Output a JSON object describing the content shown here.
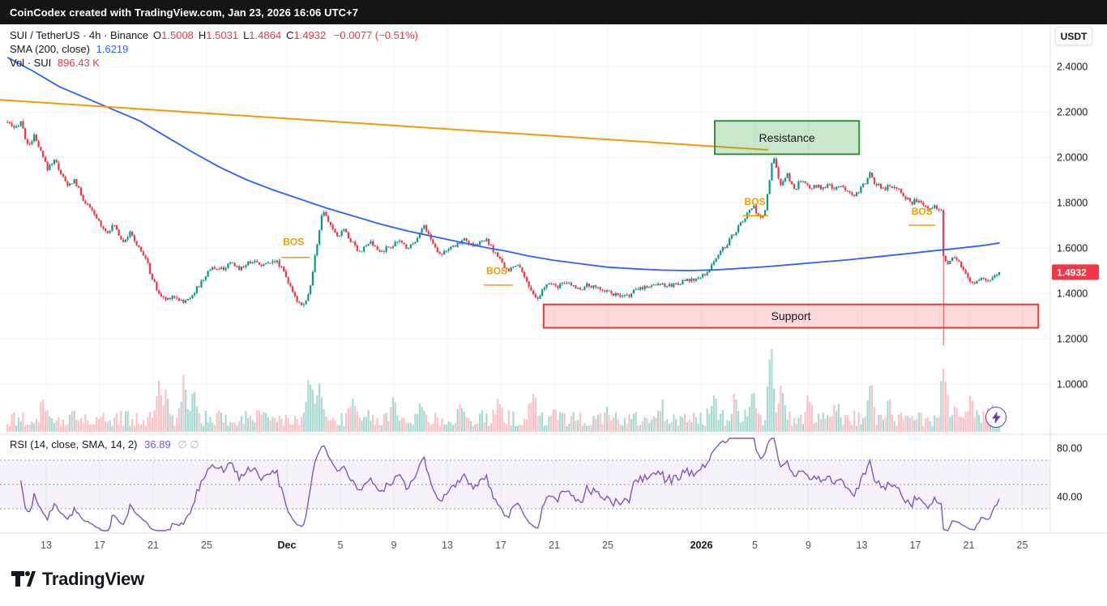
{
  "topbar": {
    "text": "CoinCodex created with TradingView.com, Jan 23, 2026 16:06 UTC+7"
  },
  "header": {
    "symbol_title": "SUI / TetherUS · 4h · Binance",
    "ohlc": {
      "open_label": "O",
      "open": "1.5008",
      "high_label": "H",
      "high": "1.5031",
      "low_label": "L",
      "low": "1.4864",
      "close_label": "C",
      "close": "1.4932",
      "change": "−0.0077 (−0.51%)"
    },
    "sma_label": "SMA (200, close)",
    "sma_value": "1.6219",
    "vol_label": "Vol · SUI",
    "vol_value": "896.43 K",
    "currency_button": "USDT"
  },
  "rsi_legend": {
    "label": "RSI (14, close, SMA, 14, 2)",
    "value": "36.89",
    "hidden_markers": "∅ ∅"
  },
  "footer": {
    "brand": "TradingView"
  },
  "price_axis": {
    "labels": [
      "2.4000",
      "2.2000",
      "2.0000",
      "1.8000",
      "1.6000",
      "1.4000",
      "1.2000",
      "1.0000"
    ],
    "values": [
      2.4,
      2.2,
      2.0,
      1.8,
      1.6,
      1.4,
      1.2,
      1.0
    ],
    "last_price_label": "1.4932",
    "last_price": 1.4932
  },
  "rsi_axis": {
    "labels": [
      "80.00",
      "40.00"
    ],
    "values": [
      80,
      40
    ]
  },
  "time_axis": {
    "labels": [
      {
        "text": "13",
        "day": 2,
        "bold": false
      },
      {
        "text": "17",
        "day": 6,
        "bold": false
      },
      {
        "text": "21",
        "day": 10,
        "bold": false
      },
      {
        "text": "25",
        "day": 14,
        "bold": false
      },
      {
        "text": "Dec",
        "day": 20,
        "bold": true
      },
      {
        "text": "5",
        "day": 24,
        "bold": false
      },
      {
        "text": "9",
        "day": 28,
        "bold": false
      },
      {
        "text": "13",
        "day": 32,
        "bold": false
      },
      {
        "text": "17",
        "day": 36,
        "bold": false
      },
      {
        "text": "21",
        "day": 40,
        "bold": false
      },
      {
        "text": "25",
        "day": 44,
        "bold": false
      },
      {
        "text": "2026",
        "day": 51,
        "bold": true
      },
      {
        "text": "5",
        "day": 55,
        "bold": false
      },
      {
        "text": "9",
        "day": 59,
        "bold": false
      },
      {
        "text": "13",
        "day": 63,
        "bold": false
      },
      {
        "text": "17",
        "day": 67,
        "bold": false
      },
      {
        "text": "21",
        "day": 71,
        "bold": false
      },
      {
        "text": "25",
        "day": 75,
        "bold": false
      }
    ]
  },
  "annotations": {
    "resistance": {
      "label": "Resistance",
      "day_start": 52,
      "day_end": 62.8,
      "price_top": 2.16,
      "price_bottom": 2.013
    },
    "support": {
      "label": "Support",
      "day_start": 39.2,
      "day_end": 76.2,
      "price_top": 1.351,
      "price_bottom": 1.248
    },
    "bos": [
      {
        "label": "BOS",
        "day_center": 20.5,
        "text_price": 1.612,
        "line_day_start": 19.6,
        "line_day_end": 21.7,
        "line_price": 1.558
      },
      {
        "label": "BOS",
        "day_center": 35.7,
        "text_price": 1.484,
        "line_day_start": 34.7,
        "line_day_end": 36.9,
        "line_price": 1.436
      },
      {
        "label": "BOS",
        "day_center": 55.0,
        "text_price": 1.79,
        "line_day_start": 54.1,
        "line_day_end": 56.0,
        "line_price": 1.742
      },
      {
        "label": "BOS",
        "day_center": 67.5,
        "text_price": 1.746,
        "line_day_start": 66.5,
        "line_day_end": 68.5,
        "line_price": 1.7
      }
    ]
  },
  "colors": {
    "up": "#089981",
    "down": "#f23645",
    "vol_up": "rgba(8,153,129,0.35)",
    "vol_down": "rgba(242,54,69,0.30)",
    "sma": "#2962ff",
    "trendline": "#f59b00",
    "bos": "#f59b00",
    "rsi": "#7e57c2",
    "rsi_band": "rgba(126,87,194,0.08)",
    "rsi_dash": "#9598a1",
    "resistance_fill": "rgba(76,175,80,0.30)",
    "resistance_border": "#388e3c",
    "support_fill": "rgba(239,83,80,0.22)",
    "support_border": "#e53935",
    "badge_bg": "#f23645",
    "grid": "#f3f5f9",
    "separator": "#e0e3eb",
    "axis_text": "#131722",
    "time_text": "#50535e"
  },
  "chart_data": {
    "type": "candlestick",
    "symbol": "SUI/USDT",
    "exchange": "Binance",
    "timeframe": "4h",
    "last_bar": {
      "open": 1.5008,
      "high": 1.5031,
      "low": 1.4864,
      "close": 1.4932,
      "change": -0.0077,
      "change_pct": -0.51
    },
    "sma200_last": 1.6219,
    "volume_last": "896.43 K",
    "rsi_last": 36.89,
    "price_axis_range": [
      0.8,
      2.586
    ],
    "rsi_guides": [
      70,
      50,
      30
    ],
    "day_start": -0.9,
    "day_end": 73.35,
    "bars_per_day": 6,
    "last_close": 1.4932,
    "crash_wick": {
      "day": 69.1,
      "low": 1.17
    },
    "price_path": [
      [
        -0.9,
        2.155
      ],
      [
        -0.4,
        2.12
      ],
      [
        0.1,
        2.16
      ],
      [
        0.6,
        2.05
      ],
      [
        1.1,
        2.09
      ],
      [
        1.6,
        2.02
      ],
      [
        2.1,
        1.95
      ],
      [
        2.6,
        1.99
      ],
      [
        3.1,
        1.93
      ],
      [
        3.6,
        1.87
      ],
      [
        4.1,
        1.9
      ],
      [
        4.7,
        1.82
      ],
      [
        5.3,
        1.77
      ],
      [
        5.9,
        1.72
      ],
      [
        6.5,
        1.67
      ],
      [
        7.1,
        1.7
      ],
      [
        7.7,
        1.63
      ],
      [
        8.3,
        1.665
      ],
      [
        8.9,
        1.6
      ],
      [
        9.4,
        1.56
      ],
      [
        9.9,
        1.47
      ],
      [
        10.4,
        1.4
      ],
      [
        10.9,
        1.37
      ],
      [
        11.4,
        1.39
      ],
      [
        11.9,
        1.375
      ],
      [
        12.4,
        1.36
      ],
      [
        12.9,
        1.395
      ],
      [
        13.4,
        1.43
      ],
      [
        13.9,
        1.475
      ],
      [
        14.4,
        1.52
      ],
      [
        14.9,
        1.5
      ],
      [
        15.4,
        1.515
      ],
      [
        15.9,
        1.53
      ],
      [
        16.4,
        1.51
      ],
      [
        16.9,
        1.525
      ],
      [
        17.4,
        1.545
      ],
      [
        17.9,
        1.53
      ],
      [
        18.4,
        1.525
      ],
      [
        18.9,
        1.55
      ],
      [
        19.4,
        1.53
      ],
      [
        19.8,
        1.5
      ],
      [
        20.2,
        1.43
      ],
      [
        20.6,
        1.38
      ],
      [
        21.0,
        1.355
      ],
      [
        21.4,
        1.36
      ],
      [
        21.8,
        1.44
      ],
      [
        22.1,
        1.56
      ],
      [
        22.4,
        1.67
      ],
      [
        22.7,
        1.77
      ],
      [
        23.0,
        1.72
      ],
      [
        23.4,
        1.69
      ],
      [
        23.8,
        1.64
      ],
      [
        24.2,
        1.69
      ],
      [
        24.6,
        1.645
      ],
      [
        25.0,
        1.62
      ],
      [
        25.4,
        1.585
      ],
      [
        25.8,
        1.6
      ],
      [
        26.2,
        1.625
      ],
      [
        26.6,
        1.6
      ],
      [
        27.0,
        1.58
      ],
      [
        27.5,
        1.6
      ],
      [
        28.0,
        1.615
      ],
      [
        28.5,
        1.63
      ],
      [
        29.0,
        1.6
      ],
      [
        29.5,
        1.625
      ],
      [
        29.9,
        1.665
      ],
      [
        30.3,
        1.7
      ],
      [
        30.7,
        1.645
      ],
      [
        31.1,
        1.6
      ],
      [
        31.5,
        1.575
      ],
      [
        31.9,
        1.59
      ],
      [
        32.4,
        1.6
      ],
      [
        32.9,
        1.625
      ],
      [
        33.4,
        1.64
      ],
      [
        33.9,
        1.6
      ],
      [
        34.4,
        1.625
      ],
      [
        34.9,
        1.635
      ],
      [
        35.4,
        1.59
      ],
      [
        35.9,
        1.55
      ],
      [
        36.4,
        1.5
      ],
      [
        36.9,
        1.515
      ],
      [
        37.4,
        1.52
      ],
      [
        37.9,
        1.46
      ],
      [
        38.3,
        1.4
      ],
      [
        38.7,
        1.365
      ],
      [
        39.1,
        1.41
      ],
      [
        39.5,
        1.445
      ],
      [
        40.0,
        1.43
      ],
      [
        40.5,
        1.435
      ],
      [
        41.0,
        1.445
      ],
      [
        41.5,
        1.43
      ],
      [
        42.0,
        1.42
      ],
      [
        42.5,
        1.435
      ],
      [
        43.0,
        1.425
      ],
      [
        43.5,
        1.42
      ],
      [
        44.0,
        1.41
      ],
      [
        44.5,
        1.395
      ],
      [
        45.0,
        1.38
      ],
      [
        45.5,
        1.39
      ],
      [
        46.0,
        1.41
      ],
      [
        46.5,
        1.425
      ],
      [
        47.0,
        1.43
      ],
      [
        47.5,
        1.44
      ],
      [
        48.0,
        1.445
      ],
      [
        48.5,
        1.43
      ],
      [
        49.0,
        1.44
      ],
      [
        49.5,
        1.45
      ],
      [
        50.0,
        1.455
      ],
      [
        50.5,
        1.46
      ],
      [
        51.0,
        1.47
      ],
      [
        51.5,
        1.5
      ],
      [
        52.0,
        1.545
      ],
      [
        52.5,
        1.59
      ],
      [
        53.0,
        1.625
      ],
      [
        53.5,
        1.67
      ],
      [
        54.0,
        1.71
      ],
      [
        54.5,
        1.755
      ],
      [
        54.9,
        1.785
      ],
      [
        55.2,
        1.74
      ],
      [
        55.5,
        1.72
      ],
      [
        55.8,
        1.78
      ],
      [
        56.1,
        1.9
      ],
      [
        56.35,
        2.005
      ],
      [
        56.6,
        1.95
      ],
      [
        56.85,
        1.875
      ],
      [
        57.1,
        1.9
      ],
      [
        57.4,
        1.925
      ],
      [
        57.7,
        1.88
      ],
      [
        58.0,
        1.86
      ],
      [
        58.4,
        1.895
      ],
      [
        58.8,
        1.875
      ],
      [
        59.2,
        1.86
      ],
      [
        59.6,
        1.875
      ],
      [
        60.0,
        1.865
      ],
      [
        60.5,
        1.875
      ],
      [
        61.0,
        1.86
      ],
      [
        61.5,
        1.87
      ],
      [
        62.0,
        1.855
      ],
      [
        62.4,
        1.83
      ],
      [
        62.8,
        1.855
      ],
      [
        63.2,
        1.88
      ],
      [
        63.6,
        1.925
      ],
      [
        63.9,
        1.89
      ],
      [
        64.3,
        1.875
      ],
      [
        64.7,
        1.86
      ],
      [
        65.1,
        1.875
      ],
      [
        65.5,
        1.87
      ],
      [
        65.9,
        1.855
      ],
      [
        66.3,
        1.82
      ],
      [
        66.7,
        1.8
      ],
      [
        67.1,
        1.81
      ],
      [
        67.5,
        1.79
      ],
      [
        67.9,
        1.775
      ],
      [
        68.3,
        1.785
      ],
      [
        68.7,
        1.775
      ],
      [
        68.95,
        1.772
      ],
      [
        69.1,
        1.565
      ],
      [
        69.35,
        1.53
      ],
      [
        69.6,
        1.55
      ],
      [
        69.9,
        1.565
      ],
      [
        70.2,
        1.54
      ],
      [
        70.5,
        1.505
      ],
      [
        70.8,
        1.48
      ],
      [
        71.1,
        1.455
      ],
      [
        71.4,
        1.435
      ],
      [
        71.7,
        1.45
      ],
      [
        72.0,
        1.47
      ],
      [
        72.3,
        1.455
      ],
      [
        72.6,
        1.465
      ],
      [
        72.9,
        1.48
      ],
      [
        73.1,
        1.475
      ],
      [
        73.35,
        1.4932
      ]
    ],
    "sma200_path": [
      [
        -0.9,
        2.44
      ],
      [
        1,
        2.38
      ],
      [
        3,
        2.31
      ],
      [
        5,
        2.26
      ],
      [
        7,
        2.21
      ],
      [
        9,
        2.16
      ],
      [
        11,
        2.09
      ],
      [
        13,
        2.02
      ],
      [
        15,
        1.955
      ],
      [
        17,
        1.9
      ],
      [
        19,
        1.855
      ],
      [
        21,
        1.815
      ],
      [
        23,
        1.775
      ],
      [
        25,
        1.74
      ],
      [
        27,
        1.705
      ],
      [
        29,
        1.675
      ],
      [
        31,
        1.65
      ],
      [
        33,
        1.625
      ],
      [
        35,
        1.6
      ],
      [
        36.5,
        1.585
      ],
      [
        38,
        1.565
      ],
      [
        40,
        1.545
      ],
      [
        42,
        1.53
      ],
      [
        44,
        1.515
      ],
      [
        46,
        1.508
      ],
      [
        48,
        1.502
      ],
      [
        50,
        1.5
      ],
      [
        52,
        1.503
      ],
      [
        54,
        1.51
      ],
      [
        56,
        1.518
      ],
      [
        58,
        1.528
      ],
      [
        60,
        1.538
      ],
      [
        62,
        1.548
      ],
      [
        64,
        1.56
      ],
      [
        66,
        1.572
      ],
      [
        68,
        1.585
      ],
      [
        70,
        1.597
      ],
      [
        72,
        1.61
      ],
      [
        73.3,
        1.6219
      ]
    ],
    "trendline": {
      "start": [
        -1.5,
        2.253
      ],
      "end": [
        56.0,
        2.032
      ]
    },
    "volume_spikes": [
      [
        1.8,
        0.22
      ],
      [
        4.0,
        0.18
      ],
      [
        10.4,
        0.45
      ],
      [
        11.0,
        0.3
      ],
      [
        12.3,
        0.5
      ],
      [
        13.0,
        0.3
      ],
      [
        21.7,
        0.5
      ],
      [
        22.4,
        0.45
      ],
      [
        25.0,
        0.2
      ],
      [
        28.0,
        0.25
      ],
      [
        30.0,
        0.25
      ],
      [
        33.0,
        0.18
      ],
      [
        35.9,
        0.25
      ],
      [
        38.4,
        0.3
      ],
      [
        40.0,
        0.18
      ],
      [
        44.0,
        0.15
      ],
      [
        48.0,
        0.15
      ],
      [
        51.9,
        0.3
      ],
      [
        53.5,
        0.3
      ],
      [
        54.8,
        0.4
      ],
      [
        56.2,
        0.8
      ],
      [
        57.0,
        0.45
      ],
      [
        59.0,
        0.2
      ],
      [
        61.0,
        0.18
      ],
      [
        63.6,
        0.45
      ],
      [
        65.0,
        0.2
      ],
      [
        69.15,
        0.65
      ],
      [
        70.0,
        0.25
      ],
      [
        71.2,
        0.2
      ],
      [
        72.5,
        0.18
      ]
    ]
  }
}
